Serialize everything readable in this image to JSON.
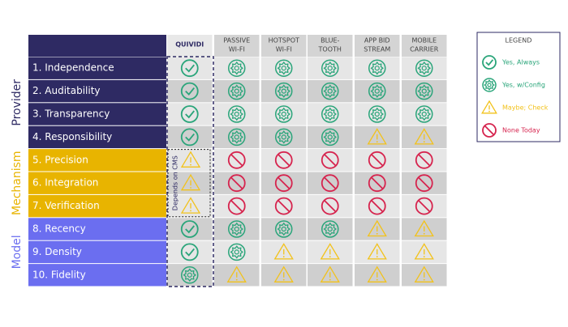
{
  "table": {
    "columns": [
      [
        "QUIVIDI"
      ],
      [
        "PASSIVE",
        "WI-FI"
      ],
      [
        "HOTSPOT",
        "WI-FI"
      ],
      [
        "BLUE-",
        "TOOTH"
      ],
      [
        "APP BID",
        "STREAM"
      ],
      [
        "MOBILE",
        "CARRIER"
      ]
    ],
    "groups": [
      {
        "label": "Provider",
        "color": "#2e2a63",
        "rows": [
          {
            "label": "1. Independence",
            "cells": [
              0,
              1,
              1,
              1,
              1,
              1
            ]
          },
          {
            "label": "2. Auditability",
            "cells": [
              0,
              1,
              1,
              1,
              1,
              1
            ]
          },
          {
            "label": "3. Transparency",
            "cells": [
              0,
              1,
              1,
              1,
              1,
              1
            ]
          },
          {
            "label": "4. Responsibility",
            "cells": [
              0,
              1,
              1,
              1,
              2,
              2
            ]
          }
        ]
      },
      {
        "label": "Mechanism",
        "color": "#e8b400",
        "note": "Depends on CMS",
        "rows": [
          {
            "label": "5. Precision",
            "cells": [
              2,
              3,
              3,
              3,
              3,
              3
            ]
          },
          {
            "label": "6. Integration",
            "cells": [
              2,
              3,
              3,
              3,
              3,
              3
            ]
          },
          {
            "label": "7. Verification",
            "cells": [
              2,
              3,
              3,
              3,
              3,
              3
            ]
          }
        ]
      },
      {
        "label": "Model",
        "color": "#6b6ef0",
        "rows": [
          {
            "label": "8. Recency",
            "cells": [
              0,
              1,
              1,
              1,
              2,
              2
            ]
          },
          {
            "label": "9. Density",
            "cells": [
              0,
              1,
              2,
              2,
              2,
              2
            ]
          },
          {
            "label": "10. Fidelity",
            "cells": [
              1,
              2,
              2,
              2,
              2,
              2
            ]
          }
        ]
      }
    ]
  },
  "legend": {
    "title": "LEGEND",
    "items": [
      {
        "label": "Yes, Always",
        "color": "#2aa57a"
      },
      {
        "label": "Yes, w/Config",
        "color": "#2aa57a"
      },
      {
        "label": "Maybe; Check",
        "color": "#f2c21b"
      },
      {
        "label": "None Today",
        "color": "#d6244e"
      }
    ]
  }
}
